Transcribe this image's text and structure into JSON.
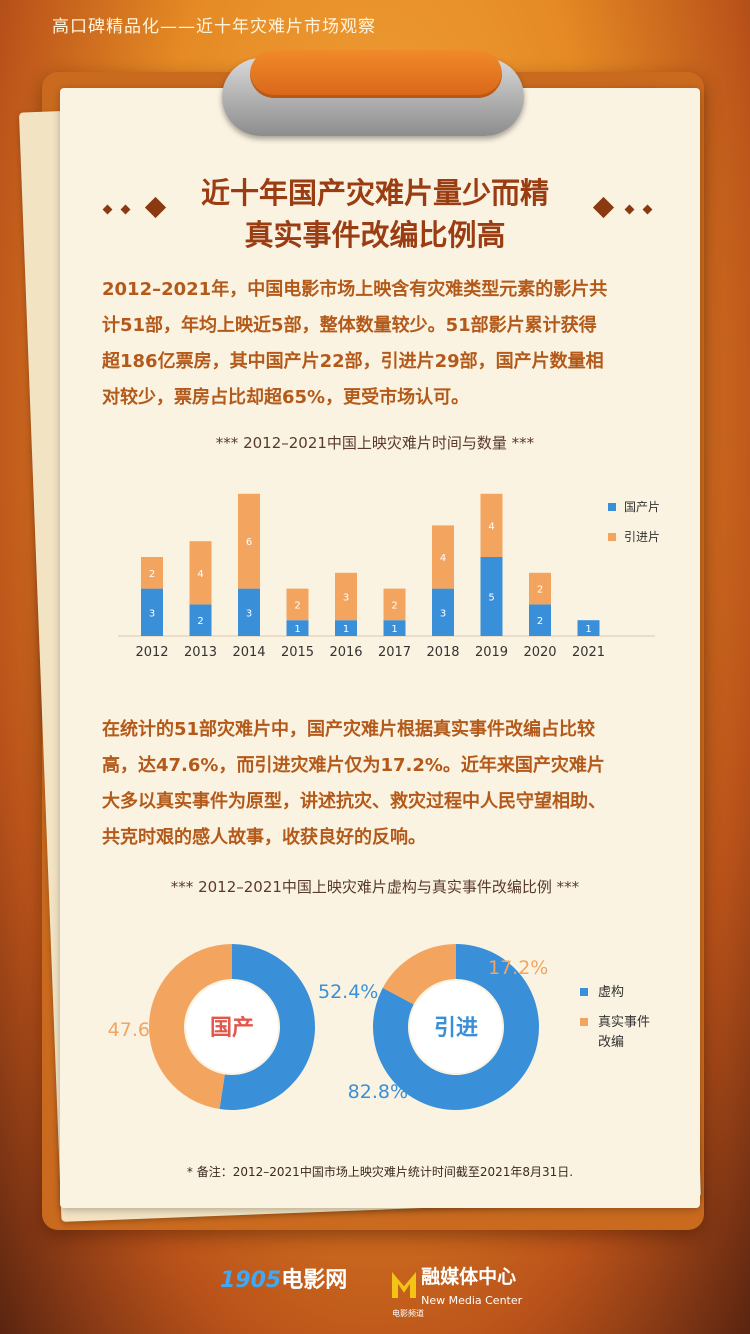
{
  "header": {
    "top_title": "高口碑精品化——近十年灾难片市场观察"
  },
  "headline": {
    "line1": "近十年国产灾难片量少而精",
    "line2": "真实事件改编比例高"
  },
  "paragraph1": {
    "l1": "2012–2021年，中国电影市场上映含有灾难类型元素的影片共",
    "l2": "计51部，年均上映近5部，整体数量较少。51部影片累计获得",
    "l3": "超186亿票房，其中国产片22部，引进片29部，国产片数量相",
    "l4": "对较少，票房占比却超65%，更受市场认可。"
  },
  "paragraph2": {
    "l1": "在统计的51部灾难片中，国产灾难片根据真实事件改编占比较",
    "l2": "高，达47.6%，而引进灾难片仅为17.2%。近年来国产灾难片",
    "l3": "大多以真实事件为原型，讲述抗灾、救灾过程中人民守望相助、",
    "l4": "共克时艰的感人故事，收获良好的反响。"
  },
  "colors": {
    "domestic": "#3a8fd9",
    "imported": "#f3a45e",
    "accent": "#9b3d12"
  },
  "chart_data": [
    {
      "type": "bar",
      "stacked": true,
      "title": "*** 2012–2021中国上映灾难片时间与数量 ***",
      "categories": [
        "2012",
        "2013",
        "2014",
        "2015",
        "2016",
        "2017",
        "2018",
        "2019",
        "2020",
        "2021"
      ],
      "series": [
        {
          "name": "国产片",
          "values": [
            3,
            2,
            3,
            1,
            1,
            1,
            3,
            5,
            2,
            1
          ]
        },
        {
          "name": "引进片",
          "values": [
            2,
            4,
            6,
            2,
            3,
            2,
            4,
            4,
            2,
            0
          ]
        }
      ],
      "legend_position": "top-right",
      "grid": false
    },
    {
      "type": "pie",
      "donut": true,
      "title": "*** 2012–2021中国上映灾难片虚构与真实事件改编比例 ***",
      "charts": [
        {
          "center_label": "国产",
          "slices": [
            {
              "label": "虚构",
              "value": 52.4,
              "text": "52.4%"
            },
            {
              "label": "真实事件改编",
              "value": 47.6,
              "text": "47.6%"
            }
          ]
        },
        {
          "center_label": "引进",
          "slices": [
            {
              "label": "虚构",
              "value": 82.8,
              "text": "82.8%"
            },
            {
              "label": "真实事件改编",
              "value": 17.2,
              "text": "17.2%"
            }
          ]
        }
      ],
      "legend": [
        "虚构",
        "真实事件改编"
      ],
      "legend_position": "right"
    }
  ],
  "footnote": "* 备注：2012–2021中国市场上映灾难片统计时间截至2021年8月31日.",
  "footer": {
    "logo1_num": "1905",
    "logo1_text": "电影网",
    "logo2_sub": "电影频道",
    "logo2_cn": "融媒体中心",
    "logo2_en": "New Media Center"
  }
}
